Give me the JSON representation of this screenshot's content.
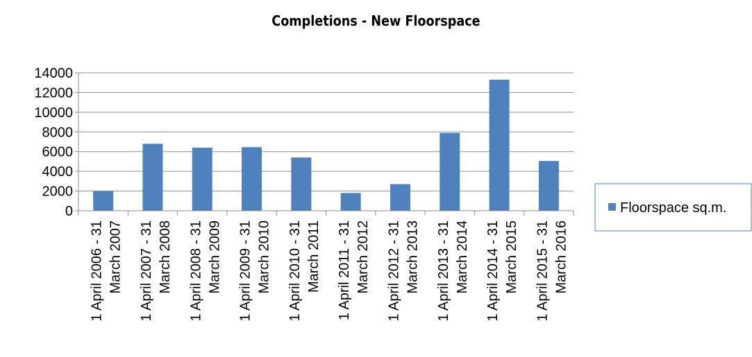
{
  "chart_data": {
    "type": "bar",
    "title": "Completions - New Floorspace",
    "xlabel": "",
    "ylabel": "",
    "ylim": [
      0,
      14000
    ],
    "yticks": [
      "0",
      "2000",
      "4000",
      "6000",
      "8000",
      "10000",
      "12000",
      "14000"
    ],
    "grid": true,
    "legend_position": "right",
    "categories": [
      [
        "1 April 2006 - 31",
        "March 2007"
      ],
      [
        "1 April 2007 - 31",
        "March 2008"
      ],
      [
        "1 April 2008 - 31",
        "March 2009"
      ],
      [
        "1 April 2009 - 31",
        "March 2010"
      ],
      [
        "1 April 2010 - 31",
        "March 2011"
      ],
      [
        "1 April 2011 - 31",
        "March 2012"
      ],
      [
        "1 April 2012 - 31",
        "March 2013"
      ],
      [
        "1 April 2013 - 31",
        "March 2014"
      ],
      [
        "1 April 2014 - 31",
        "March 2015"
      ],
      [
        "1 April 2015 - 31",
        "March 2016"
      ]
    ],
    "series": [
      {
        "name": "Floorspace sq.m.",
        "color": "#4F81BD",
        "values": [
          2000,
          6800,
          6400,
          6450,
          5400,
          1800,
          2700,
          7900,
          13300,
          5050
        ]
      }
    ]
  }
}
